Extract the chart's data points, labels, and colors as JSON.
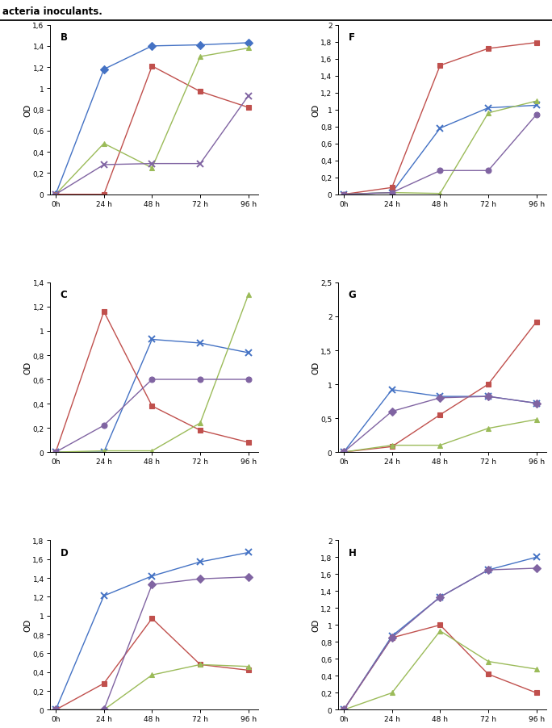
{
  "time_points": [
    0,
    24,
    48,
    72,
    96
  ],
  "panels": {
    "B": {
      "label": "B",
      "ylim": [
        0,
        1.6
      ],
      "yticks": [
        0,
        0.2,
        0.4,
        0.6,
        0.8,
        1.0,
        1.2,
        1.4,
        1.6
      ],
      "ytick_labels": [
        "0",
        "0,2",
        "0,4",
        "0,6",
        "0,8",
        "1",
        "1,2",
        "1,4",
        "1,6"
      ],
      "ylabel": "OD",
      "series": [
        {
          "color": "#4472C4",
          "marker": "D",
          "markersize": 5,
          "values": [
            0,
            1.18,
            1.4,
            1.41,
            1.43
          ]
        },
        {
          "color": "#C0504D",
          "marker": "s",
          "markersize": 5,
          "values": [
            0,
            0.0,
            1.21,
            0.97,
            0.82
          ]
        },
        {
          "color": "#9BBB59",
          "marker": "^",
          "markersize": 5,
          "values": [
            0,
            0.48,
            0.25,
            1.3,
            1.38
          ]
        },
        {
          "color": "#8064A2",
          "marker": "x",
          "markersize": 6,
          "values": [
            0,
            0.28,
            0.29,
            0.29,
            0.93
          ]
        }
      ]
    },
    "C": {
      "label": "C",
      "ylim": [
        0,
        1.4
      ],
      "yticks": [
        0,
        0.2,
        0.4,
        0.6,
        0.8,
        1.0,
        1.2,
        1.4
      ],
      "ytick_labels": [
        "0",
        "0,2",
        "0,4",
        "0,6",
        "0,8",
        "1",
        "1,2",
        "1,4"
      ],
      "ylabel": "OD",
      "series": [
        {
          "color": "#4472C4",
          "marker": "x",
          "markersize": 6,
          "values": [
            0,
            0.0,
            0.93,
            0.9,
            0.82
          ]
        },
        {
          "color": "#C0504D",
          "marker": "s",
          "markersize": 5,
          "values": [
            0,
            1.16,
            0.38,
            0.18,
            0.08
          ]
        },
        {
          "color": "#9BBB59",
          "marker": "^",
          "markersize": 5,
          "values": [
            0,
            0.01,
            0.01,
            0.24,
            1.3
          ]
        },
        {
          "color": "#8064A2",
          "marker": "o",
          "markersize": 5,
          "values": [
            0,
            0.22,
            0.6,
            0.6,
            0.6
          ]
        }
      ]
    },
    "D": {
      "label": "D",
      "ylim": [
        0,
        1.8
      ],
      "yticks": [
        0,
        0.2,
        0.4,
        0.6,
        0.8,
        1.0,
        1.2,
        1.4,
        1.6,
        1.8
      ],
      "ytick_labels": [
        "0",
        "0,2",
        "0,4",
        "0,6",
        "0,8",
        "1",
        "1,2",
        "1,4",
        "1,6",
        "1,8"
      ],
      "ylabel": "OD",
      "series": [
        {
          "color": "#4472C4",
          "marker": "x",
          "markersize": 6,
          "values": [
            0,
            1.21,
            1.42,
            1.57,
            1.67
          ]
        },
        {
          "color": "#C0504D",
          "marker": "s",
          "markersize": 5,
          "values": [
            0,
            0.28,
            0.97,
            0.48,
            0.42
          ]
        },
        {
          "color": "#9BBB59",
          "marker": "^",
          "markersize": 5,
          "values": [
            0,
            0.0,
            0.37,
            0.48,
            0.46
          ]
        },
        {
          "color": "#8064A2",
          "marker": "D",
          "markersize": 5,
          "values": [
            0,
            0.0,
            1.33,
            1.39,
            1.41
          ]
        }
      ]
    },
    "F": {
      "label": "F",
      "ylim": [
        0,
        2.0
      ],
      "yticks": [
        0,
        0.2,
        0.4,
        0.6,
        0.8,
        1.0,
        1.2,
        1.4,
        1.6,
        1.8,
        2.0
      ],
      "ytick_labels": [
        "0",
        "0,2",
        "0,4",
        "0,6",
        "0,8",
        "1",
        "1,2",
        "1,4",
        "1,6",
        "1,8",
        "2"
      ],
      "ylabel": "OD",
      "series": [
        {
          "color": "#4472C4",
          "marker": "x",
          "markersize": 6,
          "values": [
            0,
            0.02,
            0.78,
            1.02,
            1.05
          ]
        },
        {
          "color": "#C0504D",
          "marker": "s",
          "markersize": 5,
          "values": [
            0,
            0.08,
            1.52,
            1.72,
            1.79
          ]
        },
        {
          "color": "#9BBB59",
          "marker": "^",
          "markersize": 5,
          "values": [
            0,
            0.02,
            0.01,
            0.96,
            1.1
          ]
        },
        {
          "color": "#8064A2",
          "marker": "o",
          "markersize": 5,
          "values": [
            0,
            0.02,
            0.28,
            0.28,
            0.94
          ]
        }
      ]
    },
    "G": {
      "label": "G",
      "ylim": [
        0,
        2.5
      ],
      "yticks": [
        0,
        0.5,
        1.0,
        1.5,
        2.0,
        2.5
      ],
      "ytick_labels": [
        "0",
        "0,5",
        "1",
        "1,5",
        "2",
        "2,5"
      ],
      "ylabel": "OD",
      "series": [
        {
          "color": "#4472C4",
          "marker": "x",
          "markersize": 6,
          "values": [
            0,
            0.92,
            0.82,
            0.82,
            0.72
          ]
        },
        {
          "color": "#C0504D",
          "marker": "s",
          "markersize": 5,
          "values": [
            0,
            0.08,
            0.55,
            1.0,
            1.92
          ]
        },
        {
          "color": "#9BBB59",
          "marker": "^",
          "markersize": 5,
          "values": [
            0,
            0.1,
            0.1,
            0.35,
            0.48
          ]
        },
        {
          "color": "#8064A2",
          "marker": "D",
          "markersize": 5,
          "values": [
            0,
            0.6,
            0.8,
            0.82,
            0.72
          ]
        }
      ]
    },
    "H": {
      "label": "H",
      "ylim": [
        0,
        2.0
      ],
      "yticks": [
        0,
        0.2,
        0.4,
        0.6,
        0.8,
        1.0,
        1.2,
        1.4,
        1.6,
        1.8,
        2.0
      ],
      "ytick_labels": [
        "0",
        "0,2",
        "0,4",
        "0,6",
        "0,8",
        "1",
        "1,2",
        "1,4",
        "1,6",
        "1,8",
        "2"
      ],
      "ylabel": "OD",
      "series": [
        {
          "color": "#4472C4",
          "marker": "x",
          "markersize": 6,
          "values": [
            0,
            0.87,
            1.33,
            1.65,
            1.8
          ]
        },
        {
          "color": "#C0504D",
          "marker": "s",
          "markersize": 5,
          "values": [
            0,
            0.85,
            1.0,
            0.42,
            0.2
          ]
        },
        {
          "color": "#9BBB59",
          "marker": "^",
          "markersize": 5,
          "values": [
            0,
            0.2,
            0.93,
            0.57,
            0.48
          ]
        },
        {
          "color": "#8064A2",
          "marker": "D",
          "markersize": 5,
          "values": [
            0,
            0.85,
            1.33,
            1.65,
            1.67
          ]
        }
      ]
    }
  },
  "xtick_labels": [
    "0h",
    "24 h",
    "48 h",
    "72 h",
    "96 h"
  ],
  "panel_order": [
    [
      "B",
      "F"
    ],
    [
      "C",
      "G"
    ],
    [
      "D",
      "H"
    ]
  ],
  "header_text": "acteria inoculants.",
  "header_bg": "#BEBEBE",
  "header_border_color": "#1C1C1C"
}
